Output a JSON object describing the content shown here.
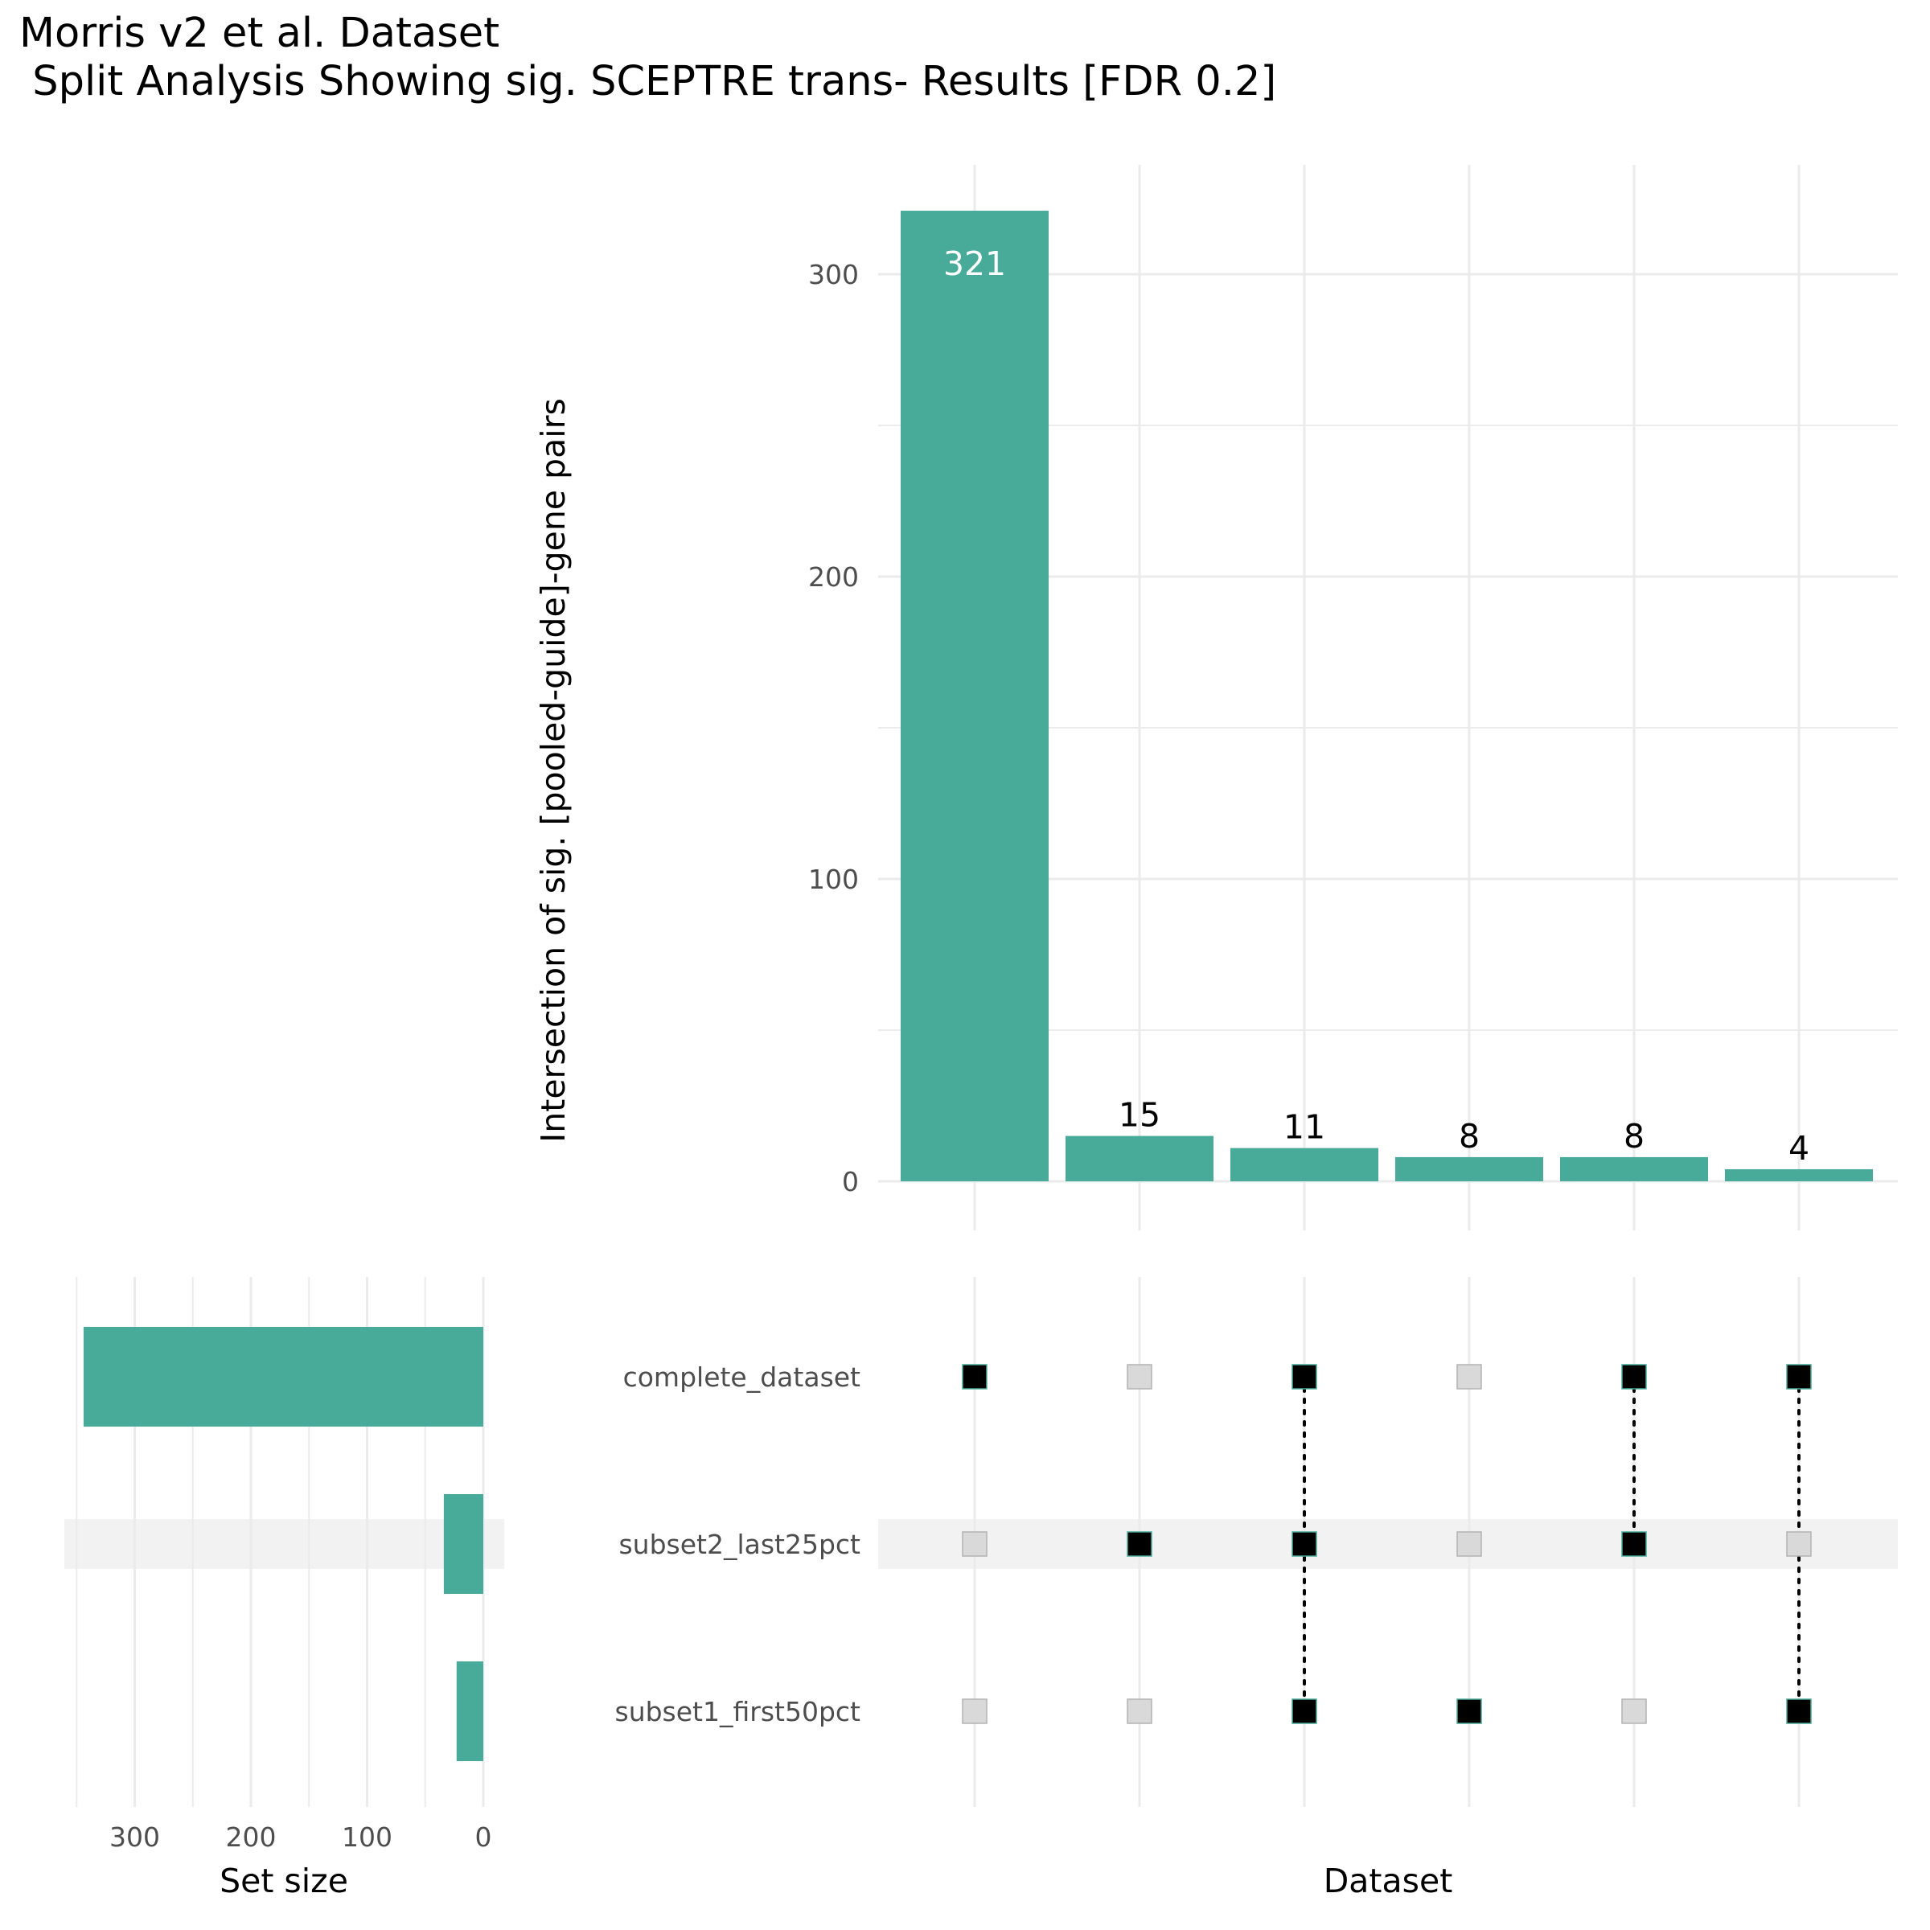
{
  "title": "Morris v2 et al. Dataset",
  "subtitle": " Split Analysis Showing sig. SCEPTRE trans- Results [FDR 0.2]",
  "chart_data": {
    "type": "bar",
    "subtype": "upset",
    "intersections": {
      "ylabel": "Intersection of sig. [pooled-guide]-gene pairs",
      "xlabel": "Dataset",
      "values": [
        321,
        15,
        11,
        8,
        8,
        4
      ],
      "ylim": [
        0,
        335
      ],
      "yticks": [
        "0",
        "100",
        "200",
        "300"
      ],
      "members": [
        [
          "complete_dataset"
        ],
        [
          "subset2_last25pct"
        ],
        [
          "complete_dataset",
          "subset2_last25pct",
          "subset1_first50pct"
        ],
        [
          "subset1_first50pct"
        ],
        [
          "complete_dataset",
          "subset2_last25pct"
        ],
        [
          "complete_dataset",
          "subset1_first50pct"
        ]
      ]
    },
    "sets": {
      "names": [
        "complete_dataset",
        "subset2_last25pct",
        "subset1_first50pct"
      ],
      "sizes": [
        344,
        34,
        23
      ],
      "xlabel": "Set size",
      "xticks": [
        "300",
        "200",
        "100",
        "0"
      ],
      "xlim": [
        0,
        350
      ]
    },
    "grid": true,
    "colors": {
      "bar": "#48ab9a",
      "dot_active": "#000000",
      "dot_inactive": "#d9d9d9",
      "grid": "#ebebeb",
      "band": "#f2f2f2",
      "label_inside": "#ffffff",
      "label_outside": "#000000"
    }
  }
}
